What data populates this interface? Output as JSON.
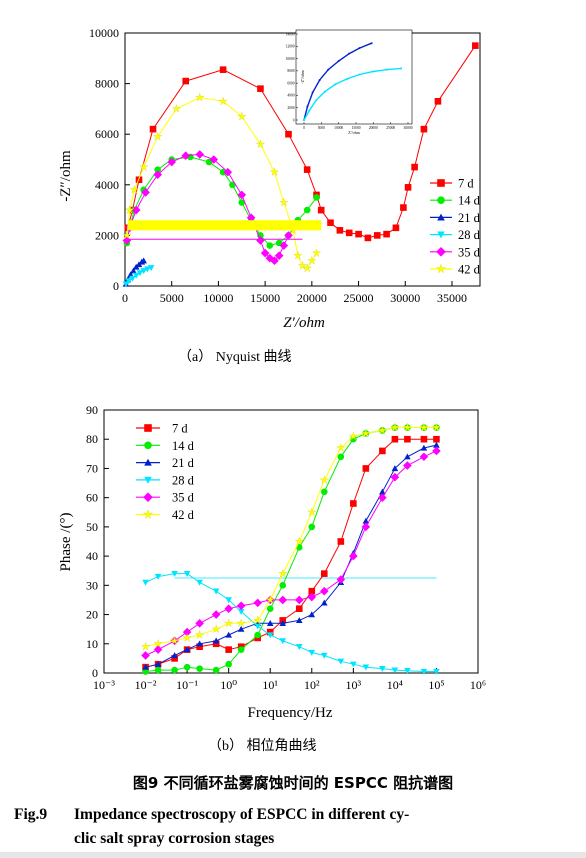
{
  "chart_data": [
    {
      "type": "scatter",
      "subtitle": "（a）  Nyquist 曲线",
      "xlabel": "Z′/ohm",
      "ylabel": "-Z″/ohm",
      "xlim": [
        0,
        38000
      ],
      "ylim": [
        0,
        10000
      ],
      "xticks": [
        "0",
        "5000",
        "10000",
        "15000",
        "20000",
        "25000",
        "30000",
        "35000"
      ],
      "yticks": [
        "0",
        "2000",
        "4000",
        "6000",
        "8000",
        "10000"
      ],
      "legend_position": "right",
      "series": [
        {
          "name": "7 d",
          "color": "#ff0000",
          "marker": "square",
          "x": [
            300,
            800,
            1500,
            3000,
            6500,
            10500,
            14500,
            17500,
            19500,
            20500,
            21000,
            22000,
            23000,
            24000,
            25000,
            26000,
            27000,
            28000,
            29000,
            29800,
            30300,
            31000,
            32000,
            33500,
            37500
          ],
          "y": [
            2300,
            3000,
            4200,
            6200,
            8100,
            8550,
            7800,
            6000,
            4600,
            3600,
            3000,
            2500,
            2200,
            2100,
            2050,
            1900,
            2000,
            2050,
            2300,
            3100,
            3900,
            4700,
            6200,
            7300,
            9500
          ]
        },
        {
          "name": "14 d",
          "color": "#00ee00",
          "marker": "circle",
          "x": [
            200,
            500,
            1000,
            2000,
            3500,
            5000,
            7000,
            9000,
            10500,
            11500,
            12500,
            13500,
            14500,
            15500,
            16500,
            17500,
            18500,
            19500,
            20500
          ],
          "y": [
            1700,
            2300,
            3000,
            3800,
            4600,
            5000,
            5100,
            4900,
            4500,
            4000,
            3300,
            2600,
            2000,
            1600,
            1700,
            2000,
            2600,
            3000,
            3500
          ]
        },
        {
          "name": "21 d",
          "color": "#0022cc",
          "marker": "triangle",
          "x": [
            100,
            300,
            600,
            900,
            1200,
            1500,
            1800,
            2000
          ],
          "y": [
            80,
            250,
            450,
            600,
            750,
            850,
            950,
            1000
          ]
        },
        {
          "name": "28 d",
          "color": "#00e5ff",
          "marker": "triangle-down",
          "x": [
            100,
            400,
            800,
            1200,
            1600,
            2000,
            2400,
            2800
          ],
          "y": [
            80,
            200,
            300,
            420,
            520,
            600,
            670,
            720
          ]
        },
        {
          "name": "35 d",
          "color": "#ff00ff",
          "marker": "diamond",
          "x": [
            200,
            500,
            1200,
            2200,
            3500,
            5000,
            6500,
            8000,
            9500,
            11000,
            12500,
            13500,
            14500,
            15000,
            15500,
            16000,
            16500,
            17000,
            17500
          ],
          "y": [
            1800,
            2300,
            3000,
            3700,
            4400,
            4900,
            5150,
            5200,
            5000,
            4500,
            3600,
            2700,
            1800,
            1300,
            1100,
            1000,
            1200,
            1600,
            2000
          ]
        },
        {
          "name": "42 d",
          "color": "#ffff00",
          "marker": "star",
          "x": [
            200,
            500,
            1000,
            2000,
            3500,
            5500,
            8000,
            10500,
            12500,
            14500,
            16000,
            17000,
            18000,
            18500,
            19000,
            19500,
            20000,
            20500
          ],
          "y": [
            2000,
            3000,
            3800,
            4700,
            5900,
            7000,
            7450,
            7300,
            6700,
            5600,
            4500,
            3300,
            2200,
            1200,
            800,
            700,
            1000,
            1300
          ]
        }
      ],
      "inset": {
        "xticks": [
          "0",
          "5000",
          "10000",
          "15000",
          "20000",
          "25000",
          "30000"
        ],
        "yticks": [
          "0",
          "2000",
          "4000",
          "6000",
          "8000",
          "10000",
          "12000",
          "14000"
        ],
        "xlabel": "Z'/ohm",
        "ylabel": "-Z''/ohm",
        "series": [
          {
            "name": "21 d",
            "color": "#0022cc",
            "x": [
              0,
              1000,
              2500,
              4500,
              7000,
              10000,
              13000,
              16000,
              19500
            ],
            "y": [
              0,
              2200,
              4500,
              6500,
              8200,
              9600,
              10800,
              11700,
              12500
            ]
          },
          {
            "name": "28 d",
            "color": "#00e5ff",
            "x": [
              0,
              1500,
              3500,
              6000,
              9000,
              12500,
              16000,
              20000,
              24000,
              28000
            ],
            "y": [
              0,
              1500,
              3200,
              4600,
              5800,
              6700,
              7400,
              7900,
              8200,
              8400
            ]
          }
        ]
      }
    },
    {
      "type": "scatter",
      "subtitle": "（b）  相位角曲线",
      "xlabel": "Frequency/Hz",
      "ylabel": "Phase /(°)",
      "xscale": "log",
      "xlim": [
        0.001,
        1000000
      ],
      "ylim": [
        0,
        90
      ],
      "xticks": [
        "10⁻³",
        "10⁻²",
        "10⁻¹",
        "10⁰",
        "10¹",
        "10²",
        "10³",
        "10⁴",
        "10⁵",
        "10⁶"
      ],
      "yticks": [
        "0",
        "10",
        "20",
        "30",
        "40",
        "50",
        "60",
        "70",
        "80",
        "90"
      ],
      "legend_position": "top-left",
      "series": [
        {
          "name": "7 d",
          "color": "#ff0000",
          "marker": "square",
          "x": [
            0.01,
            0.02,
            0.05,
            0.1,
            0.2,
            0.5,
            1,
            2,
            5,
            10,
            20,
            50,
            100,
            200,
            500,
            1000,
            2000,
            5000,
            10000,
            20000,
            50000,
            100000
          ],
          "y": [
            2,
            3,
            5,
            8,
            9,
            10,
            8,
            9,
            12,
            14,
            18,
            22,
            28,
            34,
            45,
            58,
            70,
            76,
            80,
            80,
            80,
            80
          ]
        },
        {
          "name": "14 d",
          "color": "#00ee00",
          "marker": "circle",
          "x": [
            0.01,
            0.02,
            0.05,
            0.1,
            0.2,
            0.5,
            1,
            2,
            5,
            10,
            20,
            50,
            100,
            200,
            500,
            1000,
            2000,
            5000,
            10000,
            20000,
            50000,
            100000
          ],
          "y": [
            0.5,
            1,
            1,
            2,
            1.5,
            1,
            3,
            8,
            13,
            22,
            30,
            43,
            50,
            62,
            74,
            80,
            82,
            83,
            84,
            84,
            84,
            84
          ]
        },
        {
          "name": "21 d",
          "color": "#0022cc",
          "marker": "triangle",
          "x": [
            0.01,
            0.02,
            0.05,
            0.1,
            0.2,
            0.5,
            1,
            2,
            5,
            10,
            20,
            50,
            100,
            200,
            500,
            1000,
            2000,
            5000,
            10000,
            20000,
            50000,
            100000
          ],
          "y": [
            2,
            3,
            6,
            8,
            10,
            11,
            13,
            15,
            17,
            17,
            17,
            18,
            20,
            24,
            31,
            41,
            52,
            62,
            70,
            74,
            77,
            78
          ]
        },
        {
          "name": "28 d",
          "color": "#00e5ff",
          "marker": "triangle-down",
          "x": [
            0.01,
            0.02,
            0.05,
            0.1,
            0.2,
            0.5,
            1,
            2,
            5,
            10,
            20,
            50,
            100,
            200,
            500,
            1000,
            2000,
            5000,
            10000,
            20000,
            50000,
            100000
          ],
          "y": [
            31,
            33,
            34,
            34,
            31,
            28,
            25,
            21,
            16,
            13,
            11,
            9,
            7,
            6,
            4,
            3,
            2,
            1.5,
            1,
            0.8,
            0.5,
            0.5
          ]
        },
        {
          "name": "35 d",
          "color": "#ff00ff",
          "marker": "diamond",
          "x": [
            0.01,
            0.02,
            0.05,
            0.1,
            0.2,
            0.5,
            1,
            2,
            5,
            10,
            20,
            50,
            100,
            200,
            500,
            1000,
            2000,
            5000,
            10000,
            20000,
            50000,
            100000
          ],
          "y": [
            6,
            8,
            11,
            14,
            17,
            20,
            22,
            23,
            24,
            25,
            25,
            25,
            26,
            28,
            32,
            40,
            50,
            60,
            67,
            71,
            74,
            76
          ]
        },
        {
          "name": "42 d",
          "color": "#ffff00",
          "marker": "star",
          "x": [
            0.01,
            0.02,
            0.05,
            0.1,
            0.2,
            0.5,
            1,
            2,
            5,
            10,
            20,
            50,
            100,
            200,
            500,
            1000,
            2000,
            5000,
            10000,
            20000,
            50000,
            100000
          ],
          "y": [
            9,
            10,
            11,
            12,
            13,
            15,
            17,
            17,
            18,
            25,
            34,
            45,
            55,
            66,
            77,
            81,
            82,
            83,
            84,
            84,
            84,
            84
          ]
        }
      ]
    }
  ],
  "figure_caption_cn": "图9    不同循环盐雾腐蚀时间的 ESPCC 阻抗谱图",
  "figure_caption_en_num": "Fig.9",
  "figure_caption_en_l1": "Impedance spectroscopy of ESPCC in different cy-",
  "figure_caption_en_l2": "clic salt spray corrosion stages"
}
